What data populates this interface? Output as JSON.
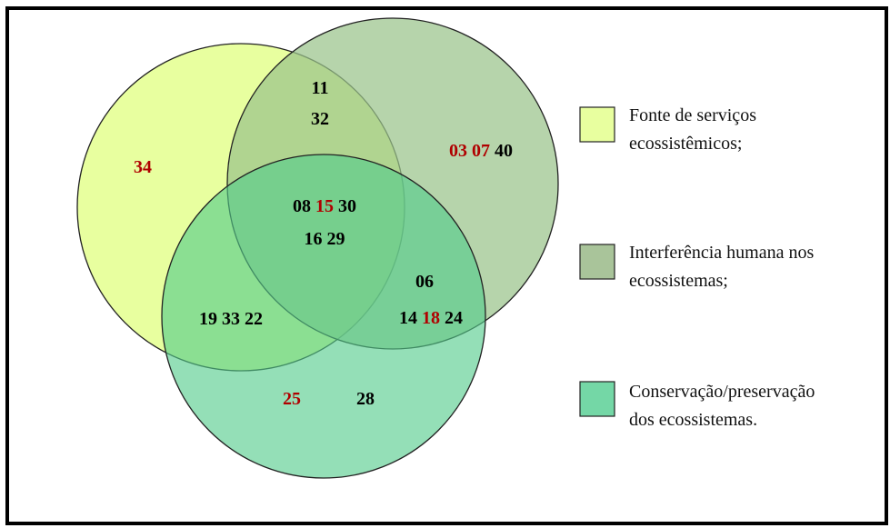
{
  "colors": {
    "set_a_fill": "#e8ff9f",
    "set_b_fill": "#9ac38a",
    "set_c_fill": "#52cc8a",
    "highlight": "#b00000",
    "normal": "#000000"
  },
  "sets": [
    {
      "id": "A",
      "label_lines": [
        "Fonte de serviços",
        "ecossistêmicos;"
      ]
    },
    {
      "id": "B",
      "label_lines": [
        "Interferência humana nos",
        "ecossistemas;"
      ]
    },
    {
      "id": "C",
      "label_lines": [
        "Conservação/preservação",
        "dos ecossistemas."
      ]
    }
  ],
  "regions": {
    "A_only": [
      [
        {
          "t": "34",
          "red": true
        }
      ]
    ],
    "B_only": [
      [
        {
          "t": "03",
          "red": true
        },
        {
          "t": "07",
          "red": true
        },
        {
          "t": "40",
          "red": false
        }
      ]
    ],
    "C_only": [
      [
        {
          "t": "25",
          "red": true
        }
      ],
      [
        {
          "t": "28",
          "red": false
        }
      ]
    ],
    "AB": [
      [
        {
          "t": "11",
          "red": false
        }
      ],
      [
        {
          "t": "32",
          "red": false
        }
      ]
    ],
    "ABC": [
      [
        {
          "t": "08",
          "red": false
        },
        {
          "t": "15",
          "red": true
        },
        {
          "t": "30",
          "red": false
        }
      ],
      [
        {
          "t": "16",
          "red": false
        },
        {
          "t": "29",
          "red": false
        }
      ]
    ],
    "AC": [
      [
        {
          "t": "19",
          "red": false
        },
        {
          "t": "33",
          "red": false
        },
        {
          "t": "22",
          "red": false
        }
      ]
    ],
    "BC": [
      [
        {
          "t": "06",
          "red": false
        }
      ],
      [
        {
          "t": "14",
          "red": false
        },
        {
          "t": "18",
          "red": true
        },
        {
          "t": "24",
          "red": false
        }
      ]
    ]
  }
}
